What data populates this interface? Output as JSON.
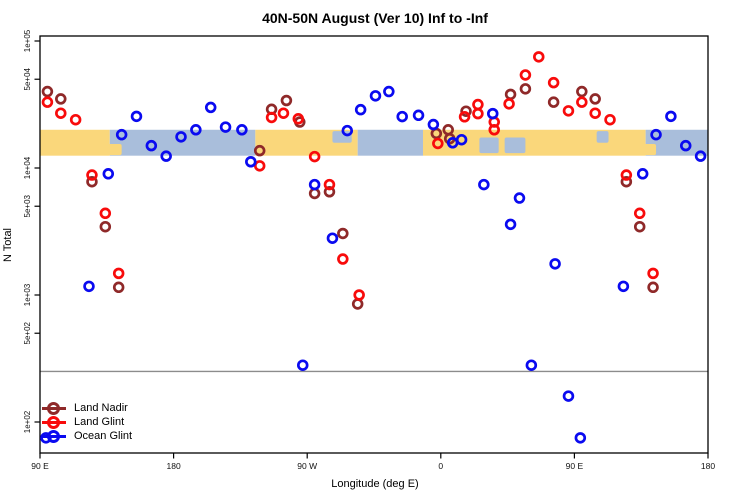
{
  "title": "40N-50N August (Ver 10)   Inf to -Inf",
  "xlabel": "Longitude (deg E)",
  "ylabel": "N Total",
  "legend": {
    "items": [
      {
        "id": "land-nadir",
        "label": "Land Nadir",
        "color": "#8F2929"
      },
      {
        "id": "land-glint",
        "label": "Land Glint",
        "color": "#F80B0B"
      },
      {
        "id": "ocean-glint",
        "label": "Ocean Glint",
        "color": "#0A0AF0"
      }
    ]
  },
  "chart_data": {
    "type": "scatter",
    "title": "40N-50N August (Ver 10)   Inf to -Inf",
    "xlabel": "Longitude (deg E)",
    "ylabel": "N Total",
    "grid": false,
    "legend_position": "bottom-left",
    "x_axis": {
      "deg_start": 90,
      "deg_end": 540,
      "wrap_note": "longitude axis spans 450 deg: 90E to 180 to 90W to 0 to 90E to 180; points with deg <= 180 are repeated at deg+360",
      "ticks": [
        {
          "deg": 90,
          "label": "90 E"
        },
        {
          "deg": 180,
          "label": "180"
        },
        {
          "deg": 270,
          "label": "90 W"
        },
        {
          "deg": 360,
          "label": "0"
        },
        {
          "deg": 450,
          "label": "90 E"
        },
        {
          "deg": 540,
          "label": "180"
        }
      ]
    },
    "y_axis": {
      "scale": "log10",
      "min": 60,
      "max": 100000,
      "ticks": [
        {
          "value": 100000,
          "label": "1e+05"
        },
        {
          "value": 50000,
          "label": "5e+04"
        },
        {
          "value": 10000,
          "label": "1e+04"
        },
        {
          "value": 5000,
          "label": "5e+03"
        },
        {
          "value": 1000,
          "label": "1e+03"
        },
        {
          "value": 500,
          "label": "5e+02"
        },
        {
          "value": 100,
          "label": "1e+02"
        }
      ]
    },
    "reference_line": {
      "value": 250,
      "color": "#8C8C8C"
    },
    "map_band": {
      "value_top": 20000,
      "value_bottom": 12500,
      "land_color": "#FAD77B",
      "ocean_color": "#A9BEDB",
      "land_deg": [
        [
          90,
          137
        ],
        [
          235,
          304
        ],
        [
          348,
          498
        ]
      ],
      "ocean_deg": [
        [
          137,
          235
        ],
        [
          304,
          348
        ],
        [
          498,
          540
        ]
      ],
      "lake_deg": [
        {
          "range": [
            287,
            300
          ],
          "pos": "upper"
        },
        {
          "range": [
            386,
            399
          ],
          "pos": "mid"
        },
        {
          "range": [
            403,
            417
          ],
          "pos": "mid"
        },
        {
          "range": [
            465,
            473
          ],
          "pos": "upper"
        }
      ],
      "island_deg": [
        {
          "range": [
            134,
            145
          ],
          "pos": "lower"
        },
        {
          "range": [
            494,
            505
          ],
          "pos": "lower"
        }
      ]
    },
    "series": [
      {
        "name": "Land Nadir",
        "color": "#8F2929",
        "points": [
          [
            95,
            40000
          ],
          [
            104,
            35000
          ],
          [
            125,
            7800
          ],
          [
            134,
            3450
          ],
          [
            143,
            1150
          ],
          [
            238,
            13700
          ],
          [
            246,
            29000
          ],
          [
            256,
            34000
          ],
          [
            265,
            23000
          ],
          [
            275,
            6300
          ],
          [
            285,
            6500
          ],
          [
            294,
            3050
          ],
          [
            304,
            850
          ],
          [
            357,
            18700
          ],
          [
            365,
            20000
          ],
          [
            366,
            17000
          ],
          [
            377,
            28000
          ],
          [
            407,
            38000
          ],
          [
            417,
            42000
          ],
          [
            436,
            33000
          ]
        ]
      },
      {
        "name": "Land Glint",
        "color": "#F80B0B",
        "points": [
          [
            95,
            33000
          ],
          [
            104,
            27000
          ],
          [
            114,
            24000
          ],
          [
            125,
            8800
          ],
          [
            134,
            4400
          ],
          [
            143,
            1480
          ],
          [
            238,
            10400
          ],
          [
            246,
            25000
          ],
          [
            254,
            27000
          ],
          [
            264,
            24400
          ],
          [
            275,
            12300
          ],
          [
            285,
            7400
          ],
          [
            294,
            1920
          ],
          [
            305,
            1000
          ],
          [
            358,
            15600
          ],
          [
            376,
            25300
          ],
          [
            385,
            31600
          ],
          [
            385,
            26800
          ],
          [
            396,
            23000
          ],
          [
            396,
            20000
          ],
          [
            406,
            32000
          ],
          [
            417,
            54000
          ],
          [
            426,
            75000
          ],
          [
            436,
            47000
          ],
          [
            446,
            28200
          ]
        ]
      },
      {
        "name": "Ocean Glint",
        "color": "#0A0AF0",
        "points": [
          [
            94,
            75
          ],
          [
            123,
            1170
          ],
          [
            136,
            9000
          ],
          [
            145,
            18300
          ],
          [
            155,
            25500
          ],
          [
            165,
            15000
          ],
          [
            175,
            12400
          ],
          [
            185,
            17600
          ],
          [
            195,
            20000
          ],
          [
            205,
            30000
          ],
          [
            215,
            21000
          ],
          [
            226,
            20000
          ],
          [
            232,
            11200
          ],
          [
            267,
            280
          ],
          [
            275,
            7400
          ],
          [
            287,
            2800
          ],
          [
            297,
            19700
          ],
          [
            306,
            28800
          ],
          [
            316,
            37000
          ],
          [
            325,
            40000
          ],
          [
            334,
            25400
          ],
          [
            345,
            26000
          ],
          [
            355,
            22000
          ],
          [
            368,
            15800
          ],
          [
            374,
            16700
          ],
          [
            389,
            7400
          ],
          [
            395,
            26800
          ],
          [
            407,
            3600
          ],
          [
            413,
            5800
          ],
          [
            421,
            280
          ],
          [
            437,
            1760
          ],
          [
            446,
            160
          ]
        ]
      }
    ]
  }
}
